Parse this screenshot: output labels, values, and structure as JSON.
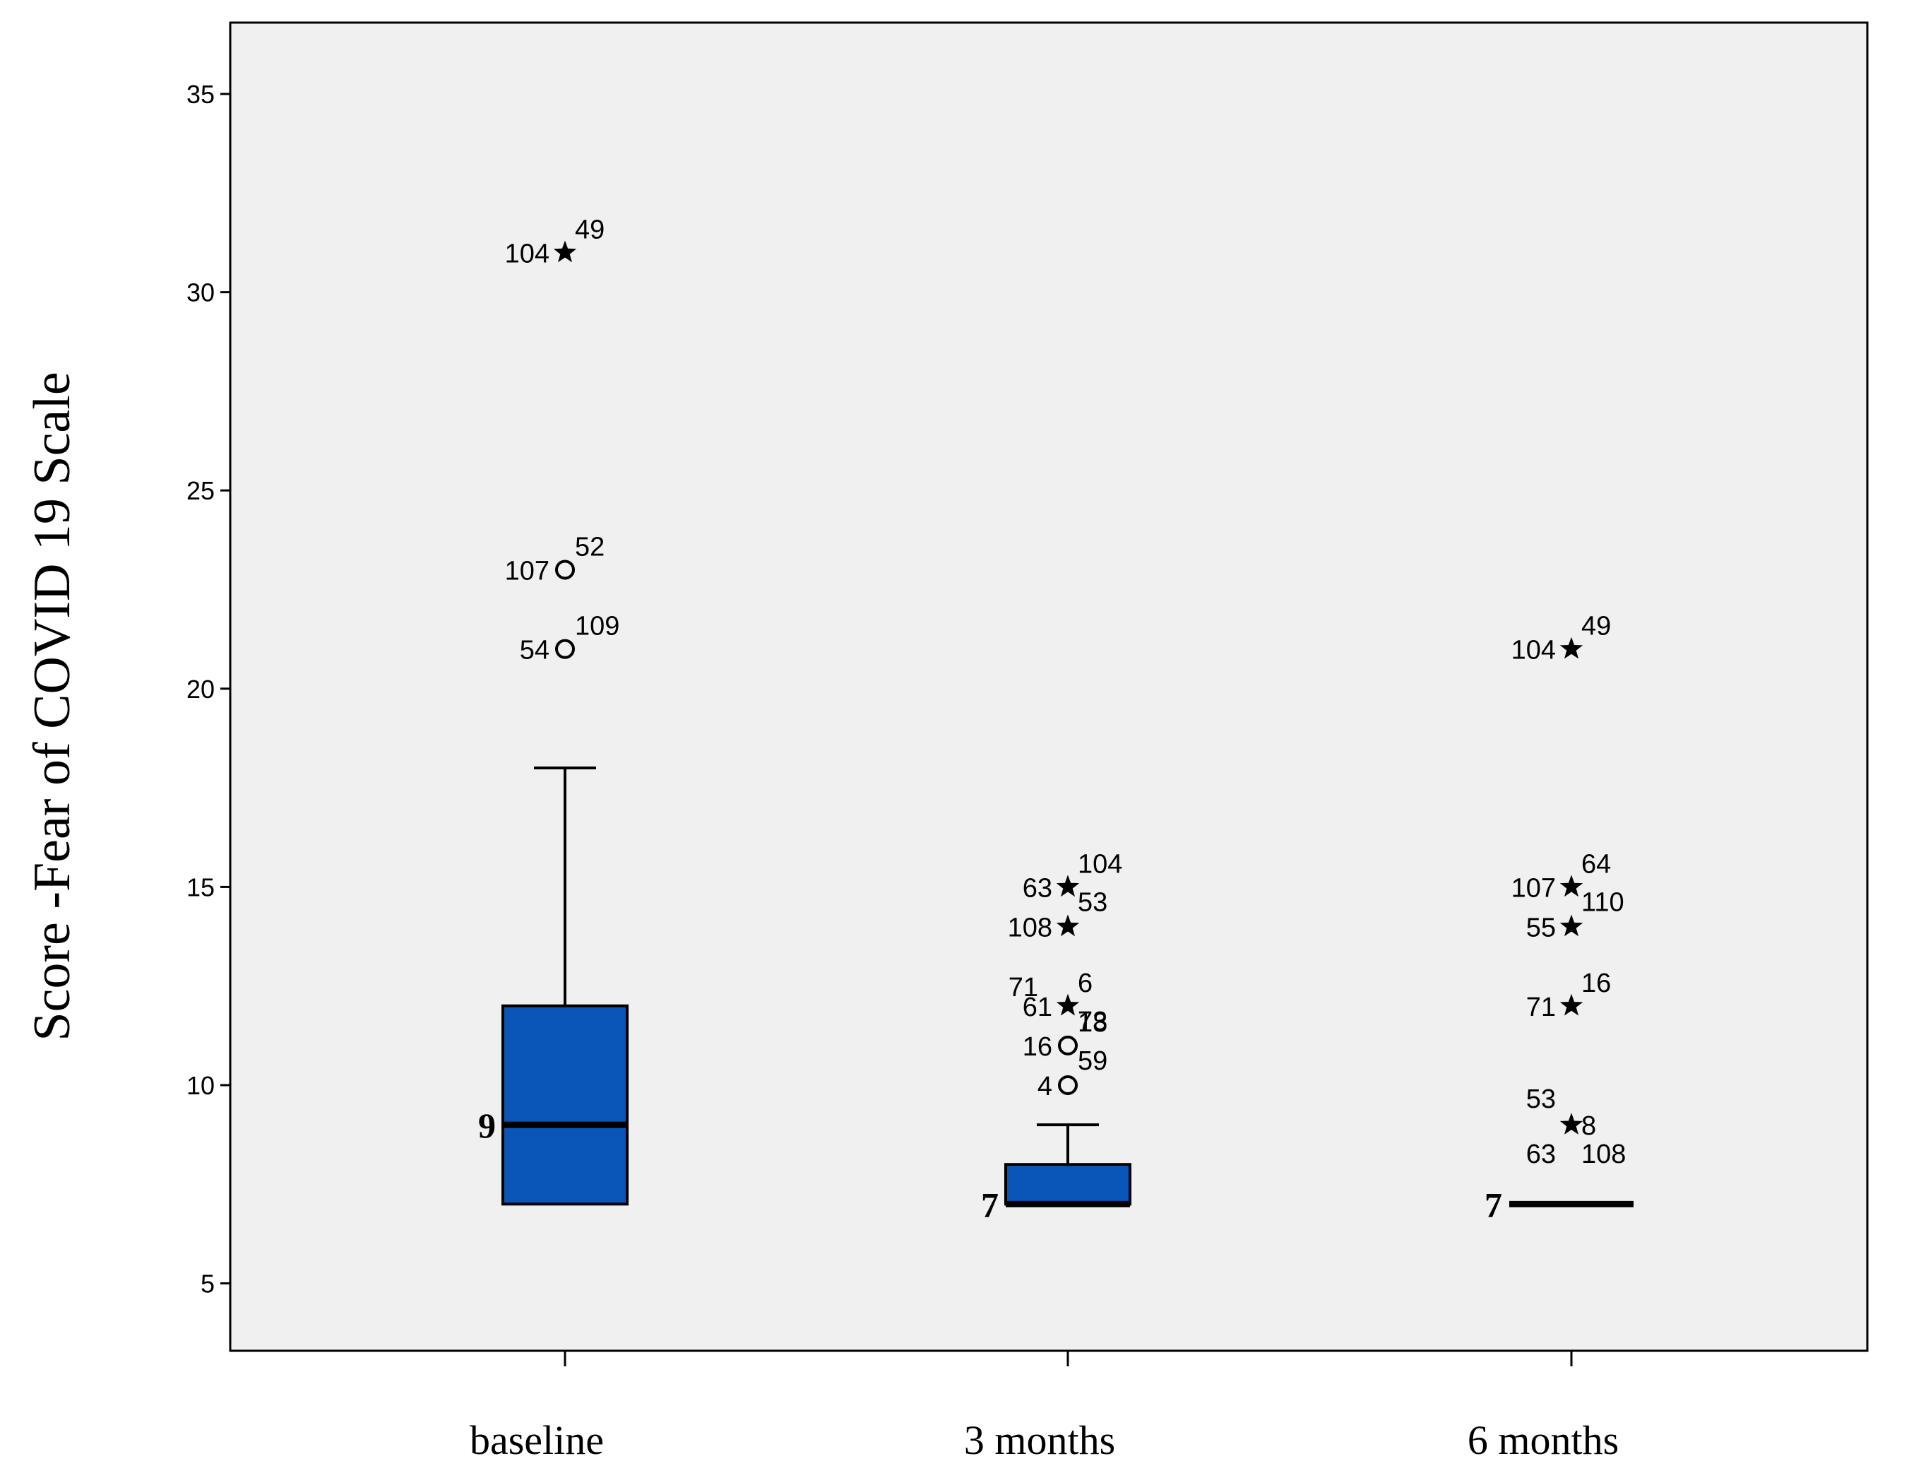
{
  "chart_data": {
    "type": "boxplot",
    "title": "",
    "xlabel": "",
    "ylabel": "Score -Fear of COVID 19 Scale",
    "ylim": [
      3.3,
      36.8
    ],
    "yticks": [
      5,
      10,
      15,
      20,
      25,
      30,
      35
    ],
    "grid": false,
    "box_color": "#0a55b8",
    "categories": [
      "baseline",
      "3 months",
      "6 months"
    ],
    "groups": [
      {
        "name": "baseline",
        "whisker_low": 7,
        "q1": 7,
        "median": 9,
        "q3": 12,
        "whisker_high": 18,
        "median_label": "9",
        "outliers": [
          {
            "value": 31,
            "marker": "star",
            "labels": [
              "104",
              "49"
            ]
          },
          {
            "value": 23,
            "marker": "circle",
            "labels": [
              "107",
              "52"
            ]
          },
          {
            "value": 21,
            "marker": "circle",
            "labels": [
              "54",
              "109"
            ]
          }
        ]
      },
      {
        "name": "3 months",
        "whisker_low": 7,
        "q1": 7,
        "median": 7,
        "q3": 8,
        "whisker_high": 9,
        "median_label": "7",
        "outliers": [
          {
            "value": 15,
            "marker": "star",
            "labels": [
              "63",
              "104",
              "53"
            ]
          },
          {
            "value": 14,
            "marker": "star",
            "labels": [
              "108"
            ]
          },
          {
            "value": 12,
            "marker": "star",
            "labels": [
              "61",
              "6",
              "71",
              "73"
            ]
          },
          {
            "value": 11,
            "marker": "circle",
            "labels": [
              "16",
              "18",
              "59"
            ]
          },
          {
            "value": 10,
            "marker": "circle",
            "labels": [
              "4"
            ]
          }
        ]
      },
      {
        "name": "6 months",
        "whisker_low": 7,
        "q1": 7,
        "median": 7,
        "q3": 7,
        "whisker_high": 7,
        "median_label": "7",
        "outliers": [
          {
            "value": 21,
            "marker": "star",
            "labels": [
              "104",
              "49"
            ]
          },
          {
            "value": 15,
            "marker": "star",
            "labels": [
              "107",
              "64",
              "110"
            ]
          },
          {
            "value": 14,
            "marker": "star",
            "labels": [
              "55"
            ]
          },
          {
            "value": 12,
            "marker": "star",
            "labels": [
              "71",
              "16"
            ]
          },
          {
            "value": 9,
            "marker": "star",
            "labels": [
              "53",
              "8",
              "63",
              "108"
            ]
          }
        ]
      }
    ]
  }
}
